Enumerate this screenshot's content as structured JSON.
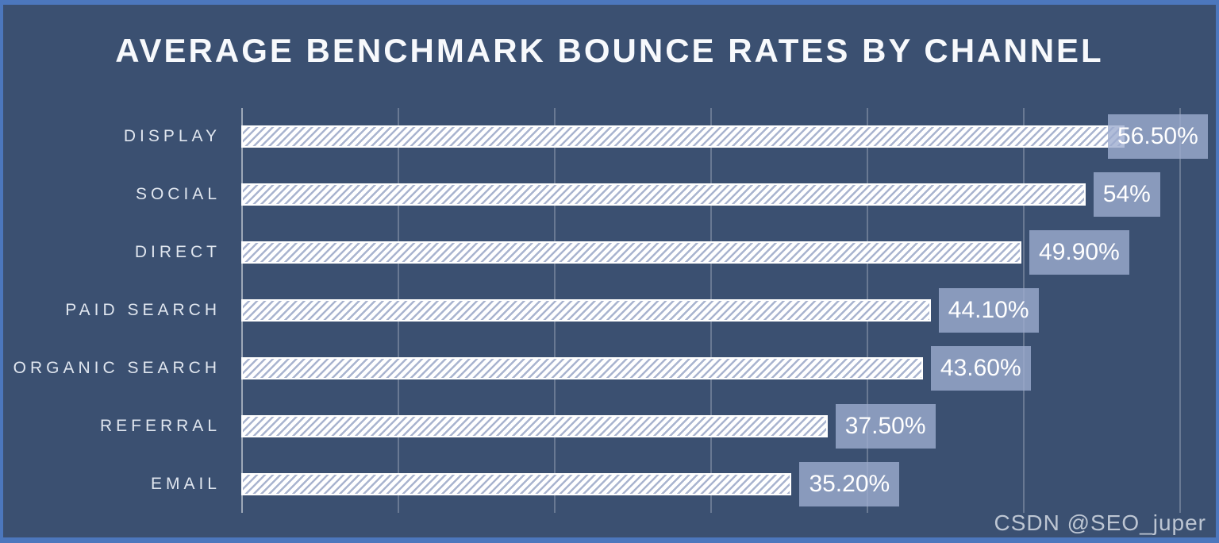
{
  "watermark": "CSDN @SEO_juper",
  "colors": {
    "background": "#3B5071",
    "frame_border": "#4C77BD",
    "bar_fill": "#FFFFFF",
    "bar_hatch": "#A9B4CF",
    "value_box": "#8E9FC4",
    "gridline": "#8793AC",
    "title_text": "#F7F9FC",
    "label_text": "#E0E6EF"
  },
  "chart_data": {
    "type": "bar",
    "orientation": "horizontal",
    "title": "AVERAGE BENCHMARK BOUNCE RATES BY CHANNEL",
    "categories": [
      "DISPLAY",
      "SOCIAL",
      "DIRECT",
      "PAID SEARCH",
      "ORGANIC SEARCH",
      "REFERRAL",
      "EMAIL"
    ],
    "values": [
      56.5,
      54,
      49.9,
      44.1,
      43.6,
      37.5,
      35.2
    ],
    "value_labels": [
      "56.50%",
      "54%",
      "49.90%",
      "44.10%",
      "43.60%",
      "37.50%",
      "35.20%"
    ],
    "xlabel": "",
    "ylabel": "",
    "xlim": [
      0,
      60
    ],
    "gridline_interval": 10,
    "grid": true,
    "legend": false,
    "bar_style": "white-diagonal-hatch",
    "data_label_position": "outside-end"
  }
}
